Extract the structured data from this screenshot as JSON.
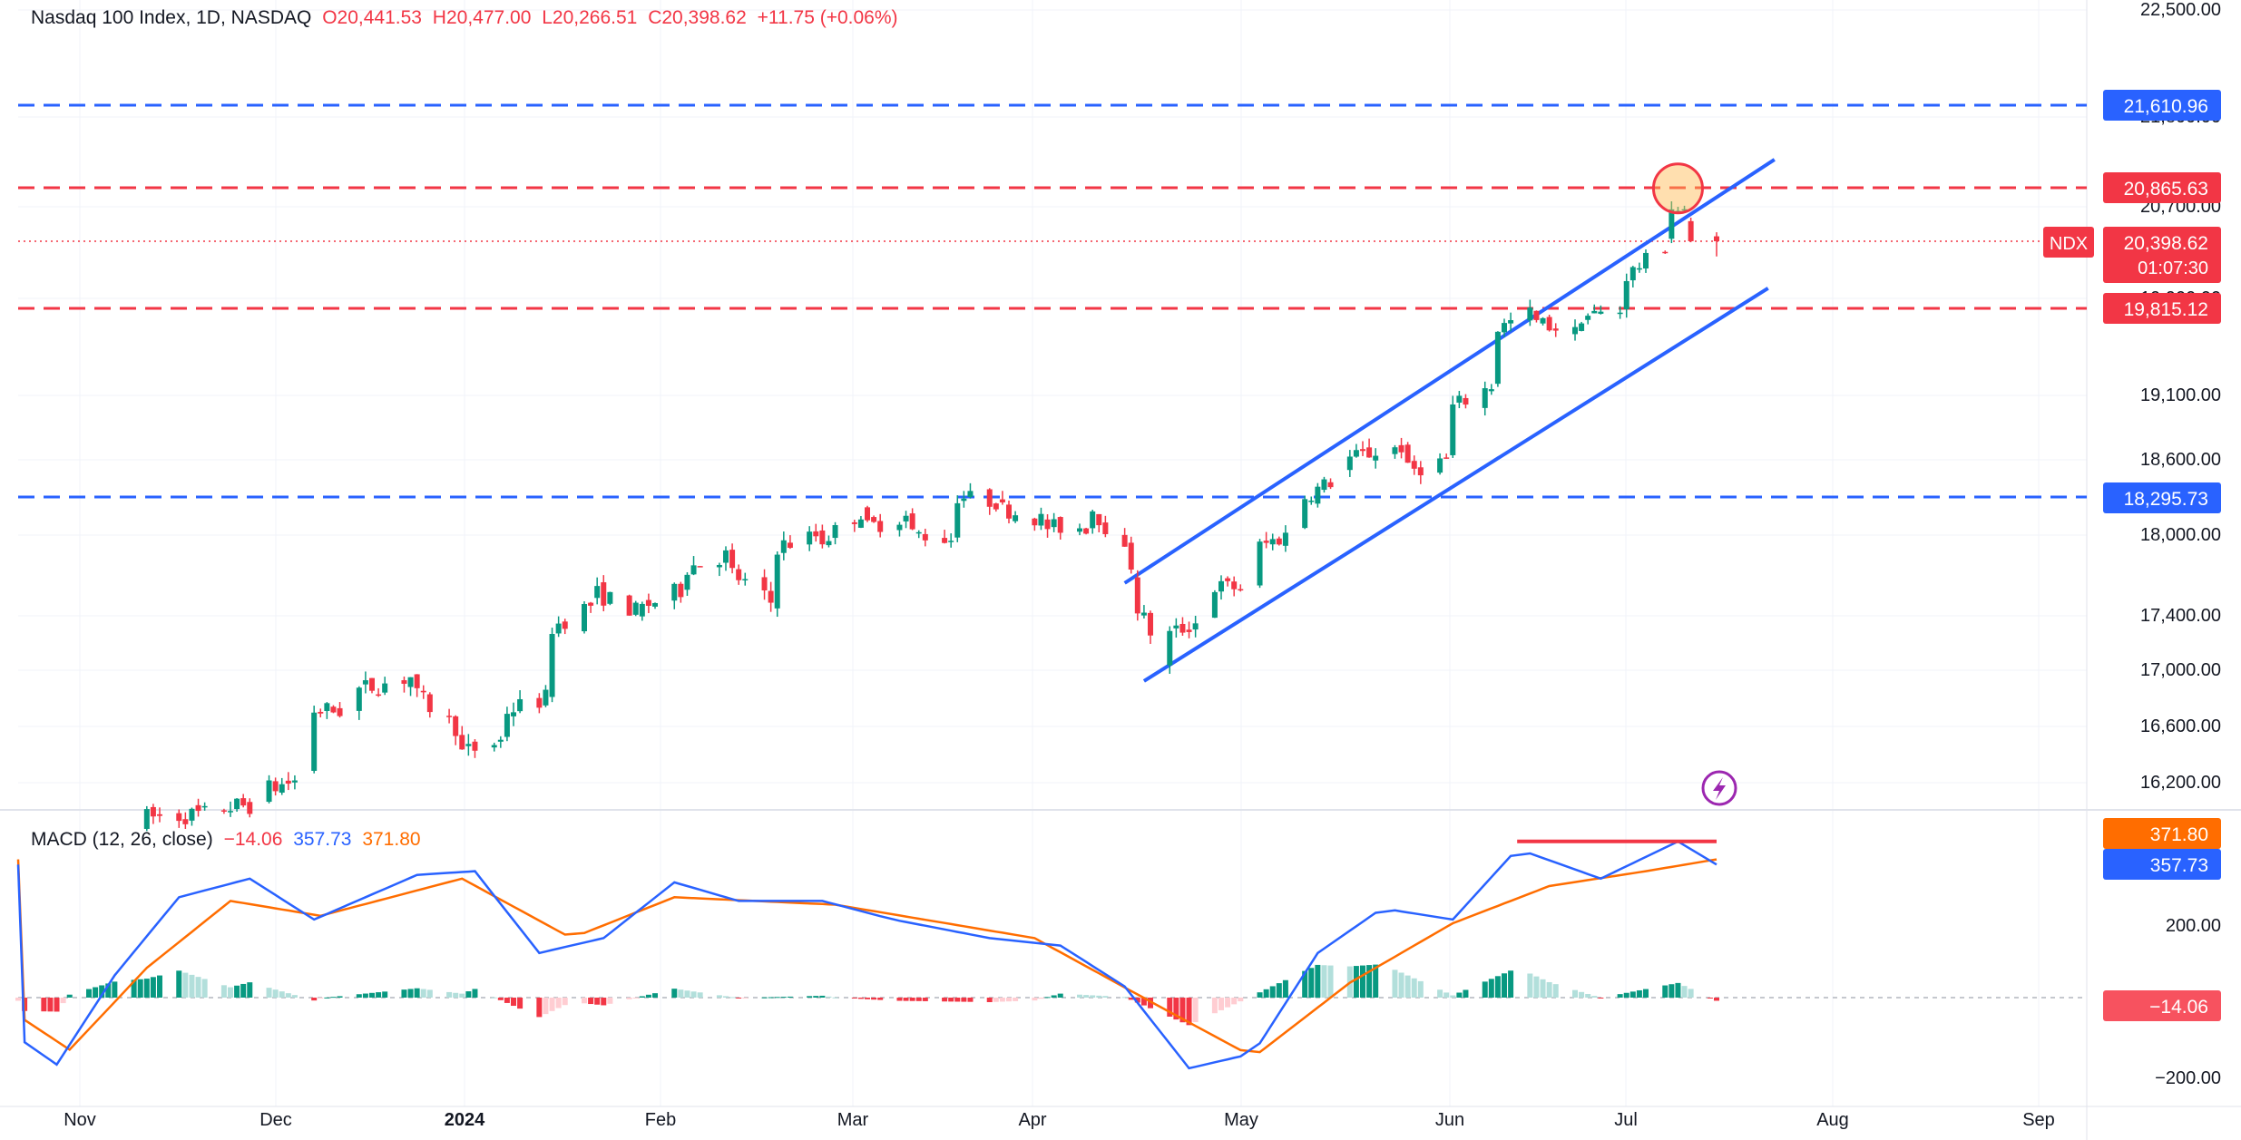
{
  "header": {
    "symbol_title": "Nasdaq 100 Index, 1D, NASDAQ",
    "open": "O20,441.53",
    "high": "H20,477.00",
    "low": "L20,266.51",
    "close": "C20,398.62",
    "change": "+11.75 (+0.06%)"
  },
  "macd_header": {
    "title": "MACD (12, 26, close)",
    "hist": "−14.06",
    "macd": "357.73",
    "signal": "371.80"
  },
  "colors": {
    "up": "#089981",
    "down": "#f23645",
    "up_light": "#b2dfdb",
    "down_light": "#ffcdd2",
    "macd_line": "#2962ff",
    "signal_line": "#ff6d00",
    "level_blue": "#2962ff",
    "level_red": "#f23645",
    "channel": "#2962ff",
    "grid": "#f0f3fa"
  },
  "chart_data": {
    "type": "candlestick",
    "symbol": "NDX",
    "interval": "1D",
    "x_ticks": [
      "Nov",
      "Dec",
      "2024",
      "Feb",
      "Mar",
      "Apr",
      "May",
      "Jun",
      "Jul",
      "Aug",
      "Sep"
    ],
    "y_ticks": [
      "22,500.00",
      "21,800.00",
      "20,700.00",
      "19,900.00",
      "19,100.00",
      "18,600.00",
      "18,000.00",
      "17,400.00",
      "17,000.00",
      "16,600.00",
      "16,200.00"
    ],
    "price_labels": {
      "level_21610": "21,610.96",
      "level_20865": "20,865.63",
      "current_symbol": "NDX",
      "current": "20,398.62",
      "countdown": "01:07:30",
      "level_19815": "19,815.12",
      "level_18295": "18,295.73"
    },
    "horizontal_levels": [
      {
        "value": 21610.96,
        "color": "blue",
        "style": "dashed"
      },
      {
        "value": 20865.63,
        "color": "red",
        "style": "dashed"
      },
      {
        "value": 19815.12,
        "color": "red",
        "style": "dashed"
      },
      {
        "value": 18295.73,
        "color": "blue",
        "style": "dashed"
      }
    ],
    "current_price": 20398.62,
    "channel": {
      "upper": [
        {
          "date": "2024-04-15",
          "value": 17630
        },
        {
          "date": "2024-07-25",
          "value": 21120
        }
      ],
      "lower": [
        {
          "date": "2024-04-18",
          "value": 16910
        },
        {
          "date": "2024-07-24",
          "value": 19990
        }
      ]
    },
    "highlight_circle": {
      "date": "2024-07-10",
      "value": 20860
    },
    "candles_weekly_approx": [
      {
        "date": "2023-11-15",
        "o": 15900,
        "c": 15950
      },
      {
        "date": "2023-11-27",
        "o": 15980,
        "c": 16020
      },
      {
        "date": "2023-12-04",
        "o": 16050,
        "c": 16150
      },
      {
        "date": "2023-12-11",
        "o": 16250,
        "c": 16700
      },
      {
        "date": "2023-12-18",
        "o": 16700,
        "c": 16850
      },
      {
        "date": "2023-12-27",
        "o": 16950,
        "c": 16800
      },
      {
        "date": "2024-01-03",
        "o": 16550,
        "c": 16400
      },
      {
        "date": "2024-01-10",
        "o": 16500,
        "c": 16700
      },
      {
        "date": "2024-01-17",
        "o": 16800,
        "c": 17300
      },
      {
        "date": "2024-01-24",
        "o": 17500,
        "c": 17550
      },
      {
        "date": "2024-01-31",
        "o": 17400,
        "c": 17450
      },
      {
        "date": "2024-02-07",
        "o": 17600,
        "c": 17750
      },
      {
        "date": "2024-02-14",
        "o": 17850,
        "c": 17700
      },
      {
        "date": "2024-02-21",
        "o": 17450,
        "c": 17900
      },
      {
        "date": "2024-02-28",
        "o": 18000,
        "c": 17950
      },
      {
        "date": "2024-03-06",
        "o": 18200,
        "c": 18050
      },
      {
        "date": "2024-03-13",
        "o": 18150,
        "c": 18000
      },
      {
        "date": "2024-03-20",
        "o": 17950,
        "c": 18300
      },
      {
        "date": "2024-03-27",
        "o": 18250,
        "c": 18200
      },
      {
        "date": "2024-04-03",
        "o": 18100,
        "c": 18050
      },
      {
        "date": "2024-04-10",
        "o": 18050,
        "c": 18200
      },
      {
        "date": "2024-04-17",
        "o": 17700,
        "c": 17450
      },
      {
        "date": "2024-04-22",
        "o": 17000,
        "c": 17250
      },
      {
        "date": "2024-04-29",
        "o": 17400,
        "c": 17600
      },
      {
        "date": "2024-05-06",
        "o": 17600,
        "c": 17900
      },
      {
        "date": "2024-05-13",
        "o": 18050,
        "c": 18300
      },
      {
        "date": "2024-05-20",
        "o": 18500,
        "c": 18600
      },
      {
        "date": "2024-05-29",
        "o": 18700,
        "c": 18500
      },
      {
        "date": "2024-06-05",
        "o": 18600,
        "c": 19000
      },
      {
        "date": "2024-06-12",
        "o": 19200,
        "c": 19650
      },
      {
        "date": "2024-06-18",
        "o": 19800,
        "c": 19700
      },
      {
        "date": "2024-06-25",
        "o": 19600,
        "c": 19750
      },
      {
        "date": "2024-07-02",
        "o": 19800,
        "c": 20100
      },
      {
        "date": "2024-07-09",
        "o": 20400,
        "c": 20700
      },
      {
        "date": "2024-07-12",
        "o": 20600,
        "c": 20380
      },
      {
        "date": "2024-07-15",
        "o": 20441.53,
        "c": 20398.62
      }
    ],
    "macd": {
      "y_ticks": [
        "200.00",
        "−200.00"
      ],
      "labels": {
        "signal": "371.80",
        "macd": "357.73",
        "hist": "−14.06"
      },
      "macd_line_approx": [
        {
          "date": "2023-10-27",
          "v": -120
        },
        {
          "date": "2023-11-01",
          "v": -180
        },
        {
          "date": "2023-11-10",
          "v": 60
        },
        {
          "date": "2023-11-20",
          "v": 270
        },
        {
          "date": "2023-12-01",
          "v": 320
        },
        {
          "date": "2023-12-11",
          "v": 210
        },
        {
          "date": "2023-12-27",
          "v": 330
        },
        {
          "date": "2024-01-05",
          "v": 340
        },
        {
          "date": "2024-01-15",
          "v": 120
        },
        {
          "date": "2024-01-25",
          "v": 160
        },
        {
          "date": "2024-02-05",
          "v": 310
        },
        {
          "date": "2024-02-15",
          "v": 260
        },
        {
          "date": "2024-02-28",
          "v": 260
        },
        {
          "date": "2024-03-10",
          "v": 210
        },
        {
          "date": "2024-03-25",
          "v": 160
        },
        {
          "date": "2024-04-05",
          "v": 140
        },
        {
          "date": "2024-04-15",
          "v": 30
        },
        {
          "date": "2024-04-25",
          "v": -190
        },
        {
          "date": "2024-05-05",
          "v": -150
        },
        {
          "date": "2024-05-15",
          "v": 120
        },
        {
          "date": "2024-05-25",
          "v": 240
        },
        {
          "date": "2024-06-05",
          "v": 210
        },
        {
          "date": "2024-06-15",
          "v": 400
        },
        {
          "date": "2024-06-28",
          "v": 320
        },
        {
          "date": "2024-07-10",
          "v": 420
        },
        {
          "date": "2024-07-16",
          "v": 357.73
        }
      ],
      "signal_line_approx": [
        {
          "date": "2023-10-27",
          "v": -60
        },
        {
          "date": "2023-11-03",
          "v": -140
        },
        {
          "date": "2023-11-15",
          "v": 80
        },
        {
          "date": "2023-11-28",
          "v": 260
        },
        {
          "date": "2023-12-12",
          "v": 220
        },
        {
          "date": "2024-01-03",
          "v": 320
        },
        {
          "date": "2024-01-20",
          "v": 160
        },
        {
          "date": "2024-02-05",
          "v": 270
        },
        {
          "date": "2024-03-01",
          "v": 250
        },
        {
          "date": "2024-04-01",
          "v": 160
        },
        {
          "date": "2024-04-20",
          "v": -20
        },
        {
          "date": "2024-05-05",
          "v": -160
        },
        {
          "date": "2024-05-20",
          "v": 40
        },
        {
          "date": "2024-06-05",
          "v": 200
        },
        {
          "date": "2024-06-20",
          "v": 300
        },
        {
          "date": "2024-07-05",
          "v": 340
        },
        {
          "date": "2024-07-16",
          "v": 371.8
        }
      ],
      "divergence_line": {
        "from": "2024-06-15",
        "to": "2024-07-16",
        "value": 420
      }
    }
  }
}
